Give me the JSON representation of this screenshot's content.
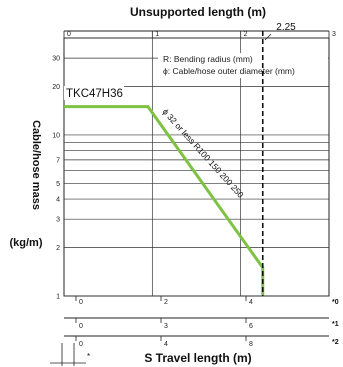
{
  "chart_data": {
    "type": "line",
    "top_axis_label": "Unsupported length (m)",
    "top_axis_ticks": [
      "0",
      "1",
      "2",
      "3"
    ],
    "top_axis_range": [
      0,
      3
    ],
    "top_axis_marker_label": "2.25",
    "top_axis_marker_value": 2.25,
    "ylabel_line1": "Cable/hose mass",
    "ylabel_line2": "(kg/m)",
    "y_scale": "log",
    "y_range": [
      1,
      40
    ],
    "y_ticks": [
      "1",
      "2",
      "3",
      "4",
      "5",
      "7",
      "10",
      "20",
      "30"
    ],
    "legend_lines": [
      "R: Bending radius (mm)",
      "ϕ: Cable/hose outer diameter (mm)"
    ],
    "series_label": "TKC47H36",
    "curve_annotation": "ϕ 32 or less R100 150 200 250",
    "series": [
      {
        "x": [
          0,
          0.95,
          2.25,
          2.25
        ],
        "y": [
          15,
          15,
          1.5,
          1
        ]
      }
    ],
    "bottom_axis_label": "S Travel length (m)",
    "bottom_scales": [
      {
        "label": "*0",
        "ticks": [
          "0",
          "2",
          "4"
        ]
      },
      {
        "label": "*1",
        "ticks": [
          "0",
          "3",
          "6"
        ]
      },
      {
        "label": "*2",
        "ticks": [
          "0",
          "4",
          "8"
        ]
      }
    ],
    "bottom_marker_label": "*"
  },
  "colors": {
    "series": "#7dc242",
    "axis": "#222222",
    "grid": "#333333"
  }
}
